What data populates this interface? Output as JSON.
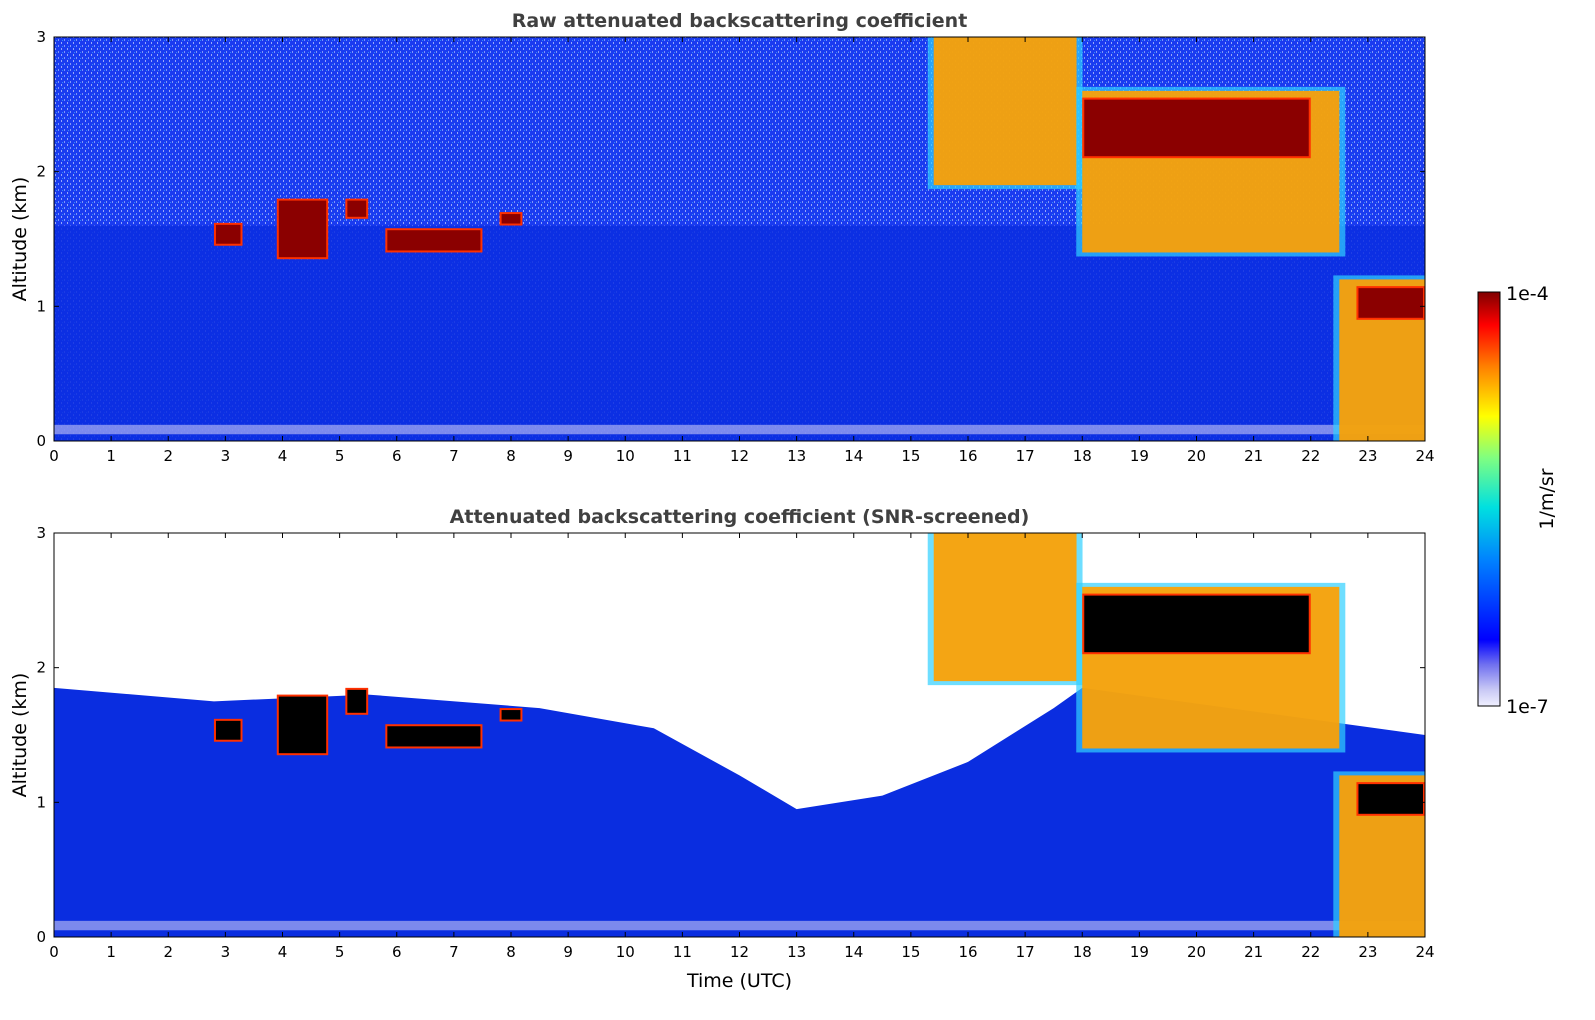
{
  "chart_data": [
    {
      "type": "heatmap",
      "title": "Raw attenuated backscattering coefficient",
      "xlabel": "",
      "ylabel": "Altitude (km)",
      "xlim": [
        0,
        24
      ],
      "ylim": [
        0,
        3
      ],
      "xticks": [
        0,
        1,
        2,
        3,
        4,
        5,
        6,
        7,
        8,
        9,
        10,
        11,
        12,
        13,
        14,
        15,
        16,
        17,
        18,
        19,
        20,
        21,
        22,
        23,
        24
      ],
      "yticks": [
        0,
        1,
        2,
        3
      ],
      "screened": false,
      "cloud_layers": [
        {
          "t_start": 2.8,
          "t_end": 3.3,
          "alt_base": 1.45,
          "alt_top": 1.62,
          "level": "high"
        },
        {
          "t_start": 3.9,
          "t_end": 4.8,
          "alt_base": 1.35,
          "alt_top": 1.8,
          "level": "high"
        },
        {
          "t_start": 5.1,
          "t_end": 5.5,
          "alt_base": 1.65,
          "alt_top": 1.8,
          "level": "high"
        },
        {
          "t_start": 5.8,
          "t_end": 7.5,
          "alt_base": 1.4,
          "alt_top": 1.58,
          "level": "high"
        },
        {
          "t_start": 7.8,
          "t_end": 8.2,
          "alt_base": 1.6,
          "alt_top": 1.7,
          "level": "high"
        },
        {
          "t_start": 15.4,
          "t_end": 17.9,
          "alt_base": 1.9,
          "alt_top": 3.0,
          "level": "mid"
        },
        {
          "t_start": 18.0,
          "t_end": 22.5,
          "alt_base": 1.4,
          "alt_top": 2.6,
          "level": "mid"
        },
        {
          "t_start": 18.0,
          "t_end": 22.0,
          "alt_base": 2.1,
          "alt_top": 2.55,
          "level": "high"
        },
        {
          "t_start": 22.5,
          "t_end": 24.0,
          "alt_base": 0.0,
          "alt_top": 1.2,
          "level": "mid"
        },
        {
          "t_start": 22.8,
          "t_end": 24.0,
          "alt_base": 0.9,
          "alt_top": 1.15,
          "level": "high"
        }
      ]
    },
    {
      "type": "heatmap",
      "title": "Attenuated backscattering coefficient (SNR-screened)",
      "xlabel": "Time (UTC)",
      "ylabel": "Altitude (km)",
      "xlim": [
        0,
        24
      ],
      "ylim": [
        0,
        3
      ],
      "xticks": [
        0,
        1,
        2,
        3,
        4,
        5,
        6,
        7,
        8,
        9,
        10,
        11,
        12,
        13,
        14,
        15,
        16,
        17,
        18,
        19,
        20,
        21,
        22,
        23,
        24
      ],
      "yticks": [
        0,
        1,
        2,
        3
      ],
      "screened": true,
      "cloud_layers": [
        {
          "t_start": 2.8,
          "t_end": 3.3,
          "alt_base": 1.45,
          "alt_top": 1.62,
          "level": "high"
        },
        {
          "t_start": 3.9,
          "t_end": 4.8,
          "alt_base": 1.35,
          "alt_top": 1.8,
          "level": "high"
        },
        {
          "t_start": 5.1,
          "t_end": 5.5,
          "alt_base": 1.65,
          "alt_top": 1.85,
          "level": "high"
        },
        {
          "t_start": 5.8,
          "t_end": 7.5,
          "alt_base": 1.4,
          "alt_top": 1.58,
          "level": "high"
        },
        {
          "t_start": 7.8,
          "t_end": 8.2,
          "alt_base": 1.6,
          "alt_top": 1.7,
          "level": "high"
        },
        {
          "t_start": 15.4,
          "t_end": 17.9,
          "alt_base": 1.9,
          "alt_top": 3.0,
          "level": "mid"
        },
        {
          "t_start": 18.0,
          "t_end": 22.5,
          "alt_base": 1.4,
          "alt_top": 2.6,
          "level": "mid"
        },
        {
          "t_start": 18.0,
          "t_end": 22.0,
          "alt_base": 2.1,
          "alt_top": 2.55,
          "level": "high"
        },
        {
          "t_start": 22.5,
          "t_end": 24.0,
          "alt_base": 0.0,
          "alt_top": 1.2,
          "level": "mid"
        },
        {
          "t_start": 22.8,
          "t_end": 24.0,
          "alt_base": 0.9,
          "alt_top": 1.15,
          "level": "high"
        }
      ]
    }
  ],
  "colorbar": {
    "label": "1/m/sr",
    "min_label": "1e-7",
    "max_label": "1e-4",
    "colormap": "jet",
    "colors": {
      "background": "#0a2de0",
      "low": "#c8c8f5",
      "mid": "#ffa000",
      "high": "#8b0000",
      "saturated": "#000000"
    }
  }
}
